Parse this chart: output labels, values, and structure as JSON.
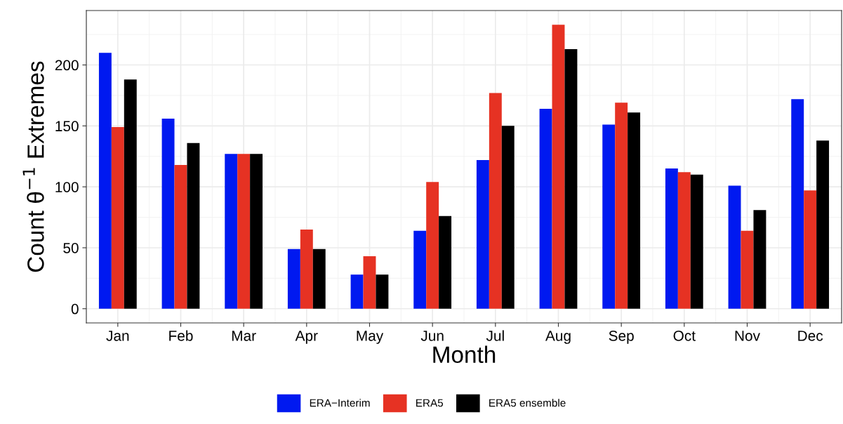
{
  "chart_data": {
    "type": "bar",
    "xlabel": "Month",
    "ylabel": "Count θ$^{−1}$ Extremes",
    "categories": [
      "Jan",
      "Feb",
      "Mar",
      "Apr",
      "May",
      "Jun",
      "Jul",
      "Aug",
      "Sep",
      "Oct",
      "Nov",
      "Dec"
    ],
    "series": [
      {
        "name": "ERA−Interim",
        "color": "#0019f0",
        "values": [
          210,
          156,
          127,
          49,
          28,
          64,
          122,
          164,
          151,
          115,
          101,
          172
        ]
      },
      {
        "name": "ERA5",
        "color": "#e63223",
        "values": [
          149,
          118,
          127,
          65,
          43,
          104,
          177,
          233,
          169,
          112,
          64,
          97
        ]
      },
      {
        "name": "ERA5 ensemble",
        "color": "#000000",
        "values": [
          188,
          136,
          127,
          49,
          28,
          76,
          150,
          213,
          161,
          110,
          81,
          138
        ]
      }
    ],
    "ylim": [
      -11.65,
      244.65
    ],
    "yticks": [
      0,
      50,
      100,
      150,
      200
    ],
    "grid": true,
    "legend": "bottom"
  }
}
